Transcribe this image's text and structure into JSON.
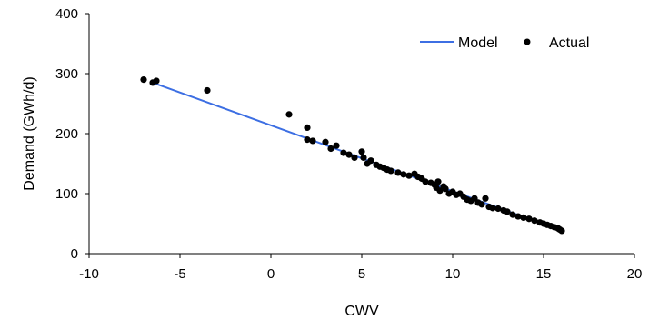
{
  "chart_data": {
    "type": "scatter",
    "title": "",
    "xlabel": "CWV",
    "ylabel": "Demand (GWh/d)",
    "xlim": [
      -10,
      20
    ],
    "ylim": [
      0,
      400
    ],
    "x_ticks": [
      "-10",
      "-5",
      "0",
      "5",
      "10",
      "15",
      "20"
    ],
    "y_ticks": [
      "0",
      "100",
      "200",
      "300",
      "400"
    ],
    "grid": false,
    "legend_position": "top-right",
    "series": [
      {
        "name": "Model",
        "kind": "line",
        "color": "#3d6fe3",
        "x": [
          -6.5,
          2,
          16
        ],
        "y": [
          285,
          192,
          38
        ]
      },
      {
        "name": "Actual",
        "kind": "scatter",
        "color": "#000000",
        "x": [
          -7,
          -6.5,
          -6.3,
          -3.5,
          1,
          2,
          2,
          2.3,
          3,
          3.3,
          3.6,
          4,
          4.3,
          4.6,
          5,
          5.1,
          5.3,
          5.5,
          5.8,
          6,
          6.2,
          6.4,
          6.6,
          7,
          7.3,
          7.6,
          7.9,
          8.1,
          8.3,
          8.5,
          8.8,
          9,
          9.1,
          9.2,
          9.3,
          9.5,
          9.6,
          9.8,
          10,
          10.2,
          10.4,
          10.6,
          10.8,
          11,
          11.2,
          11.4,
          11.6,
          11.8,
          12,
          12.2,
          12.5,
          12.8,
          13,
          13.3,
          13.6,
          13.9,
          14.2,
          14.5,
          14.8,
          15,
          15.2,
          15.4,
          15.6,
          15.8,
          16,
          15.9
        ],
        "y": [
          290,
          285,
          288,
          272,
          232,
          210,
          190,
          188,
          186,
          175,
          180,
          168,
          165,
          160,
          170,
          160,
          150,
          155,
          148,
          145,
          143,
          140,
          138,
          135,
          132,
          130,
          133,
          128,
          125,
          120,
          118,
          115,
          110,
          120,
          105,
          112,
          108,
          100,
          103,
          98,
          100,
          95,
          90,
          88,
          92,
          85,
          82,
          92,
          78,
          76,
          75,
          72,
          70,
          65,
          62,
          60,
          58,
          55,
          52,
          50,
          48,
          46,
          44,
          42,
          38,
          40
        ]
      }
    ]
  }
}
